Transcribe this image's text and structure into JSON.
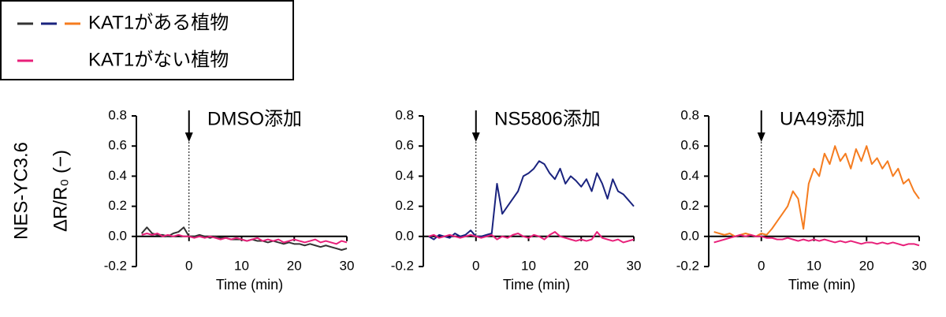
{
  "legend": {
    "entries": [
      {
        "label": "KAT1がある植物",
        "colors": [
          "#333333",
          "#1a237e",
          "#f57c1f"
        ]
      },
      {
        "label": "KAT1がない植物",
        "colors": [
          "#e8207a"
        ]
      }
    ]
  },
  "y_label_lines": [
    "NES-YC3.6",
    "ΔR/R₀ (−)"
  ],
  "chart_data": [
    {
      "type": "line",
      "title": "DMSO添加",
      "title_color": "#000000",
      "x_label": "Time (min)",
      "event_x": 0,
      "xlim": [
        -10,
        30
      ],
      "xticks": [
        0,
        10,
        20,
        30
      ],
      "ylim": [
        -0.2,
        0.8
      ],
      "yticks": [
        -0.2,
        {
          "value": 0,
          "label": "0.0"
        },
        0.2,
        0.4,
        0.6,
        0.8
      ],
      "x": [
        -9,
        -8,
        -7,
        -6,
        -5,
        -4,
        -3,
        -2,
        -1,
        0,
        1,
        2,
        3,
        4,
        5,
        6,
        7,
        8,
        9,
        10,
        11,
        12,
        13,
        14,
        15,
        16,
        17,
        18,
        19,
        20,
        21,
        22,
        23,
        24,
        25,
        26,
        27,
        28,
        29,
        30
      ],
      "series": [
        {
          "color": "#333333",
          "values": [
            0.02,
            0.06,
            0.02,
            0.01,
            0.01,
            0.0,
            0.02,
            0.03,
            0.06,
            0.0,
            0.0,
            0.01,
            0.0,
            -0.01,
            0.0,
            -0.01,
            -0.01,
            -0.02,
            -0.02,
            -0.02,
            -0.03,
            -0.02,
            -0.03,
            -0.03,
            -0.04,
            -0.03,
            -0.04,
            -0.05,
            -0.04,
            -0.05,
            -0.05,
            -0.06,
            -0.05,
            -0.06,
            -0.07,
            -0.06,
            -0.07,
            -0.08,
            -0.09,
            -0.08
          ]
        },
        {
          "color": "#e8207a",
          "values": [
            0.01,
            0.02,
            0.01,
            0.02,
            0.0,
            0.01,
            0.0,
            0.01,
            0.0,
            0.0,
            -0.01,
            0.0,
            -0.01,
            0.0,
            -0.01,
            -0.02,
            -0.01,
            -0.02,
            -0.01,
            -0.02,
            -0.03,
            -0.02,
            -0.01,
            -0.03,
            -0.02,
            -0.03,
            -0.02,
            -0.04,
            -0.03,
            -0.02,
            -0.03,
            -0.04,
            -0.03,
            -0.02,
            -0.04,
            -0.03,
            -0.04,
            -0.05,
            -0.03,
            -0.04
          ]
        }
      ]
    },
    {
      "type": "line",
      "title": "NS5806添加",
      "title_color": "#1a237e",
      "x_label": "Time (min)",
      "event_x": 0,
      "xlim": [
        -10,
        30
      ],
      "xticks": [
        0,
        10,
        20,
        30
      ],
      "ylim": [
        -0.2,
        0.8
      ],
      "yticks": [
        -0.2,
        {
          "value": 0,
          "label": "0.0"
        },
        0.2,
        0.4,
        0.6,
        0.8
      ],
      "x": [
        -9,
        -8,
        -7,
        -6,
        -5,
        -4,
        -3,
        -2,
        -1,
        0,
        1,
        2,
        3,
        4,
        5,
        6,
        7,
        8,
        9,
        10,
        11,
        12,
        13,
        14,
        15,
        16,
        17,
        18,
        19,
        20,
        21,
        22,
        23,
        24,
        25,
        26,
        27,
        28,
        29,
        30
      ],
      "series": [
        {
          "color": "#1a237e",
          "values": [
            0.0,
            -0.02,
            0.01,
            0.0,
            -0.01,
            0.02,
            0.0,
            0.01,
            0.04,
            0.0,
            0.0,
            0.01,
            0.02,
            0.35,
            0.15,
            0.2,
            0.25,
            0.3,
            0.4,
            0.42,
            0.45,
            0.5,
            0.48,
            0.42,
            0.38,
            0.45,
            0.35,
            0.4,
            0.37,
            0.33,
            0.38,
            0.3,
            0.42,
            0.35,
            0.25,
            0.38,
            0.3,
            0.28,
            0.24,
            0.2
          ]
        },
        {
          "color": "#e8207a",
          "values": [
            0.0,
            0.01,
            -0.01,
            0.0,
            0.01,
            0.0,
            -0.01,
            0.0,
            0.01,
            0.0,
            -0.01,
            0.0,
            0.01,
            -0.02,
            0.0,
            -0.01,
            0.01,
            0.02,
            0.0,
            -0.01,
            0.01,
            0.0,
            -0.02,
            0.01,
            0.03,
            0.0,
            -0.01,
            -0.02,
            -0.03,
            -0.02,
            -0.03,
            -0.02,
            0.03,
            -0.01,
            -0.02,
            -0.03,
            -0.02,
            -0.04,
            -0.03,
            -0.02
          ]
        }
      ]
    },
    {
      "type": "line",
      "title": "UA49添加",
      "title_color": "#f57c1f",
      "x_label": "Time (min)",
      "event_x": 0,
      "xlim": [
        -10,
        30
      ],
      "xticks": [
        0,
        10,
        20,
        30
      ],
      "ylim": [
        -0.2,
        0.8
      ],
      "yticks": [
        -0.2,
        {
          "value": 0,
          "label": "0.0"
        },
        0.2,
        0.4,
        0.6,
        0.8
      ],
      "x": [
        -9,
        -8,
        -7,
        -6,
        -5,
        -4,
        -3,
        -2,
        -1,
        0,
        1,
        2,
        3,
        4,
        5,
        6,
        7,
        8,
        9,
        10,
        11,
        12,
        13,
        14,
        15,
        16,
        17,
        18,
        19,
        20,
        21,
        22,
        23,
        24,
        25,
        26,
        27,
        28,
        29,
        30
      ],
      "series": [
        {
          "color": "#f57c1f",
          "values": [
            0.03,
            0.02,
            0.01,
            0.02,
            0.0,
            0.01,
            0.02,
            0.01,
            0.0,
            0.02,
            0.01,
            0.05,
            0.1,
            0.15,
            0.2,
            0.3,
            0.25,
            0.05,
            0.35,
            0.45,
            0.4,
            0.55,
            0.48,
            0.6,
            0.5,
            0.55,
            0.45,
            0.58,
            0.5,
            0.6,
            0.48,
            0.52,
            0.45,
            0.5,
            0.4,
            0.45,
            0.35,
            0.38,
            0.3,
            0.25
          ]
        },
        {
          "color": "#e8207a",
          "values": [
            -0.04,
            -0.03,
            -0.02,
            -0.01,
            0.0,
            0.01,
            0.0,
            0.01,
            0.0,
            0.0,
            -0.01,
            -0.01,
            -0.02,
            -0.02,
            -0.01,
            -0.02,
            -0.03,
            -0.02,
            -0.03,
            -0.02,
            -0.03,
            -0.02,
            -0.03,
            -0.04,
            -0.03,
            -0.04,
            -0.03,
            -0.04,
            -0.05,
            -0.04,
            -0.04,
            -0.05,
            -0.04,
            -0.05,
            -0.04,
            -0.05,
            -0.06,
            -0.05,
            -0.05,
            -0.06
          ]
        }
      ]
    }
  ]
}
